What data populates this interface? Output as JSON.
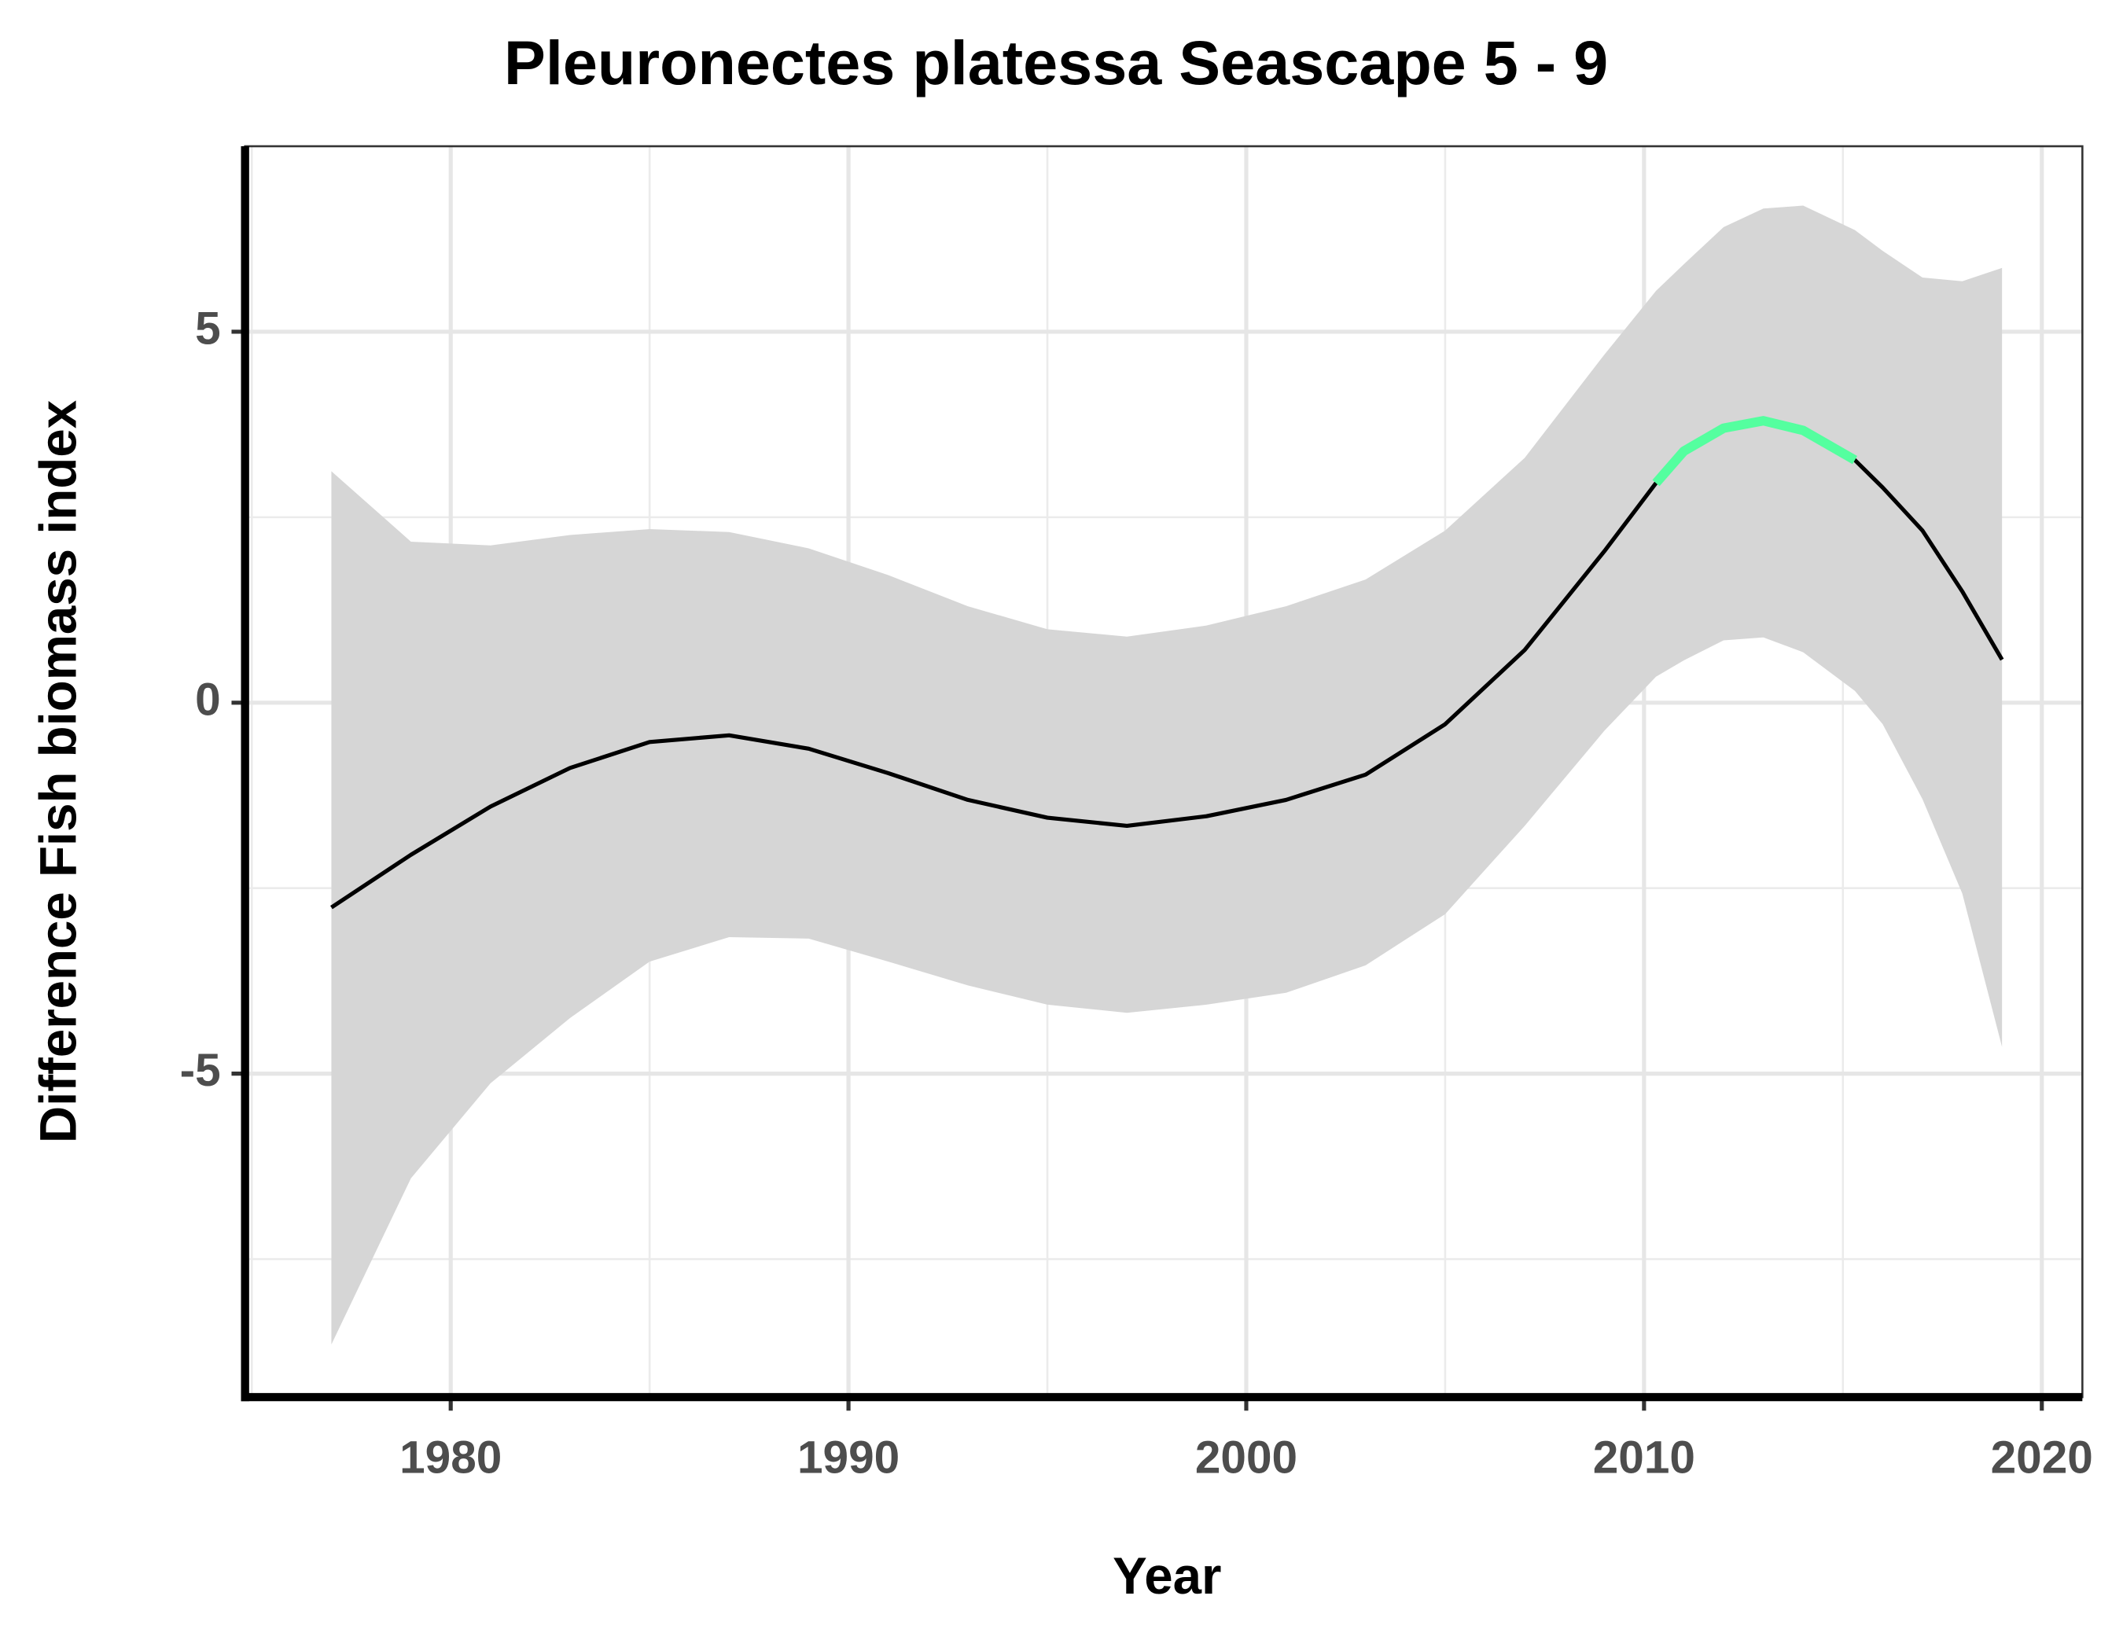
{
  "chart_data": {
    "type": "line",
    "title": "Pleuronectes platessa Seascape 5 - 9",
    "x_label": "Year",
    "y_label": "Difference Fish biomass index",
    "x": [
      1977,
      1979,
      1981,
      1983,
      1985,
      1987,
      1989,
      1991,
      1993,
      1995,
      1997,
      1999,
      2001,
      2003,
      2005,
      2007,
      2009,
      2010.3,
      2011,
      2012,
      2013,
      2014,
      2015.3,
      2016,
      2017,
      2018,
      2019
    ],
    "series": [
      {
        "color": "#000000",
        "values": [
          -2.76,
          -2.05,
          -1.4,
          -0.88,
          -0.53,
          -0.44,
          -0.62,
          -0.95,
          -1.31,
          -1.55,
          -1.66,
          -1.53,
          -1.31,
          -0.97,
          -0.29,
          0.71,
          2.04,
          2.96,
          3.39,
          3.7,
          3.8,
          3.67,
          3.27,
          2.9,
          2.32,
          1.5,
          0.58
        ]
      },
      {
        "color": "#54ff9f",
        "values": [
          null,
          null,
          null,
          null,
          null,
          null,
          null,
          null,
          null,
          null,
          null,
          null,
          null,
          null,
          null,
          null,
          null,
          2.96,
          3.39,
          3.7,
          3.8,
          3.67,
          3.27,
          null,
          null,
          null,
          null
        ]
      }
    ],
    "band": {
      "color": "#d6d6d6",
      "upper": [
        3.12,
        2.17,
        2.12,
        2.26,
        2.34,
        2.3,
        2.08,
        1.72,
        1.3,
        0.99,
        0.89,
        1.04,
        1.3,
        1.66,
        2.32,
        3.3,
        4.69,
        5.55,
        5.91,
        6.41,
        6.66,
        6.7,
        6.37,
        6.09,
        5.73,
        5.68,
        5.86
      ],
      "lower": [
        -8.65,
        -6.41,
        -5.13,
        -4.25,
        -3.49,
        -3.16,
        -3.18,
        -3.49,
        -3.81,
        -4.07,
        -4.18,
        -4.07,
        -3.91,
        -3.54,
        -2.85,
        -1.66,
        -0.38,
        0.35,
        0.57,
        0.84,
        0.88,
        0.68,
        0.16,
        -0.29,
        -1.3,
        -2.57,
        -4.64
      ]
    },
    "xlim": [
      1974.83,
      2021.02
    ],
    "ylim": [
      -9.36,
      7.5
    ],
    "xticks": [
      1980,
      1990,
      2000,
      2010,
      2020
    ],
    "yticks": [
      -5,
      0,
      5
    ],
    "xticks_minor": [
      1975,
      1985,
      1995,
      2005,
      2015
    ],
    "yticks_minor": [
      -7.5,
      -2.5,
      2.5,
      7.5
    ],
    "grid": true
  }
}
